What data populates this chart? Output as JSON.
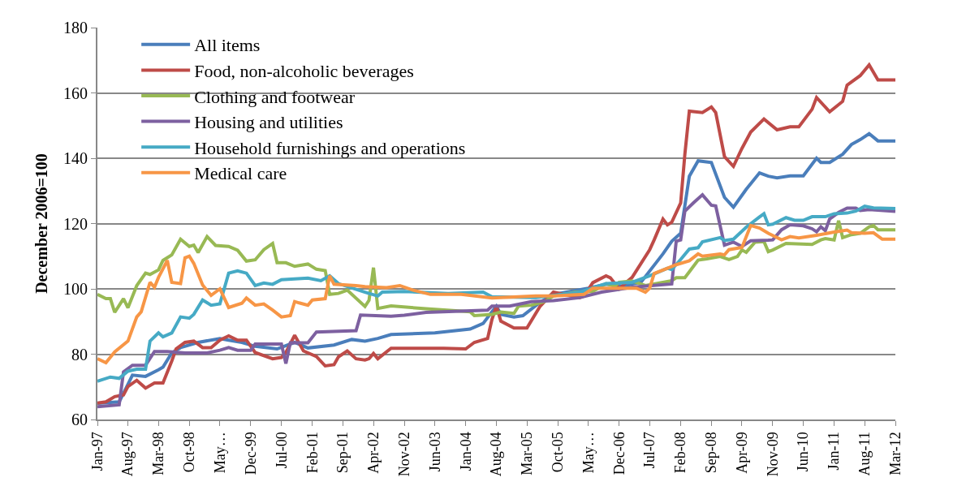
{
  "chart_data": {
    "type": "line",
    "ylabel": "December 2006=100",
    "ylim": [
      60,
      180
    ],
    "yticks": [
      60,
      80,
      100,
      120,
      140,
      160,
      180
    ],
    "xlim": [
      "1997-01",
      "2012-03"
    ],
    "xticks": [
      {
        "value": "1997-01",
        "label": "Jan-97"
      },
      {
        "value": "1997-08",
        "label": "Aug-97"
      },
      {
        "value": "1998-03",
        "label": "Mar-98"
      },
      {
        "value": "1998-10",
        "label": "Oct-98"
      },
      {
        "value": "1999-05",
        "label": "May…"
      },
      {
        "value": "1999-12",
        "label": "Dec-99"
      },
      {
        "value": "2000-07",
        "label": "Jul-00"
      },
      {
        "value": "2001-02",
        "label": "Feb-01"
      },
      {
        "value": "2001-09",
        "label": "Sep-01"
      },
      {
        "value": "2002-04",
        "label": "Apr-02"
      },
      {
        "value": "2002-11",
        "label": "Nov-02"
      },
      {
        "value": "2003-06",
        "label": "Jun-03"
      },
      {
        "value": "2004-01",
        "label": "Jan-04"
      },
      {
        "value": "2004-08",
        "label": "Aug-04"
      },
      {
        "value": "2005-03",
        "label": "Mar-05"
      },
      {
        "value": "2005-10",
        "label": "Oct-05"
      },
      {
        "value": "2006-05",
        "label": "May…"
      },
      {
        "value": "2006-12",
        "label": "Dec-06"
      },
      {
        "value": "2007-07",
        "label": "Jul-07"
      },
      {
        "value": "2008-02",
        "label": "Feb-08"
      },
      {
        "value": "2008-09",
        "label": "Sep-08"
      },
      {
        "value": "2009-04",
        "label": "Apr-09"
      },
      {
        "value": "2009-11",
        "label": "Nov-09"
      },
      {
        "value": "2010-06",
        "label": "Jun-10"
      },
      {
        "value": "2011-01",
        "label": "Jan-11"
      },
      {
        "value": "2011-08",
        "label": "Aug-11"
      },
      {
        "value": "2012-03",
        "label": "Mar-12"
      }
    ],
    "grid": "y",
    "legend": "top left",
    "marker": "none",
    "line_style": "solid",
    "series": [
      {
        "name": "All items",
        "color": "#4a7ebb",
        "x": [
          "1997-01",
          "1997-06",
          "1997-08",
          "1997-09",
          "1997-12",
          "1998-03",
          "1998-04",
          "1998-06",
          "1998-08",
          "1998-12",
          "1999-05",
          "1999-07",
          "1999-10",
          "2000-01",
          "2000-06",
          "2000-10",
          "2001-01",
          "2001-07",
          "2001-11",
          "2002-02",
          "2002-05",
          "2002-08",
          "2003-06",
          "2004-02",
          "2004-05",
          "2004-07",
          "2004-08",
          "2004-09",
          "2004-12",
          "2005-02",
          "2005-06",
          "2005-09",
          "2006-05",
          "2006-09",
          "2007-01",
          "2007-03",
          "2007-05",
          "2007-10",
          "2007-12",
          "2008-02",
          "2008-04",
          "2008-06",
          "2008-09",
          "2008-12",
          "2009-02",
          "2009-05",
          "2009-08",
          "2009-10",
          "2009-12",
          "2010-03",
          "2010-06",
          "2010-09",
          "2010-10",
          "2010-12",
          "2011-03",
          "2011-05",
          "2011-07",
          "2011-09",
          "2011-11",
          "2012-03"
        ],
        "values": [
          65,
          65.4,
          70.8,
          73.6,
          73.2,
          75.2,
          76,
          80.4,
          82,
          83.6,
          84.8,
          84.3,
          83.6,
          82.4,
          81.6,
          83.6,
          81.9,
          82.8,
          84.5,
          84,
          84.8,
          86,
          86.5,
          87.7,
          89.4,
          93,
          94.7,
          92.2,
          91.4,
          91.8,
          95.9,
          98.3,
          100.2,
          101.4,
          100.8,
          101.5,
          102,
          110.7,
          114.6,
          117,
          134.5,
          139.2,
          138.7,
          128,
          125,
          130.5,
          135.5,
          134.5,
          134,
          134.6,
          134.6,
          140,
          138.7,
          138.7,
          141.2,
          144.2,
          145.7,
          147.5,
          145.3,
          145.3
        ]
      },
      {
        "name": "Food, non-alcoholic beverages",
        "color": "#be4b48",
        "x": [
          "1997-01",
          "1997-03",
          "1997-05",
          "1997-07",
          "1997-08",
          "1997-10",
          "1997-12",
          "1998-02",
          "1998-04",
          "1998-06",
          "1998-07",
          "1998-09",
          "1998-11",
          "1999-01",
          "1999-03",
          "1999-05",
          "1999-07",
          "1999-09",
          "1999-11",
          "2000-01",
          "2000-05",
          "2000-07",
          "2000-08",
          "2000-10",
          "2000-12",
          "2001-03",
          "2001-05",
          "2001-07",
          "2001-08",
          "2001-10",
          "2001-12",
          "2002-02",
          "2002-03",
          "2002-04",
          "2002-05",
          "2002-08",
          "2003-08",
          "2004-01",
          "2004-03",
          "2004-06",
          "2004-07",
          "2004-08",
          "2004-09",
          "2004-12",
          "2005-03",
          "2005-06",
          "2005-09",
          "2006-03",
          "2006-04",
          "2006-06",
          "2006-09",
          "2006-10",
          "2006-12",
          "2007-02",
          "2007-03",
          "2007-07",
          "2007-08",
          "2007-10",
          "2007-11",
          "2007-12",
          "2008-02",
          "2008-03",
          "2008-04",
          "2008-07",
          "2008-09",
          "2008-10",
          "2008-12",
          "2009-02",
          "2009-04",
          "2009-06",
          "2009-09",
          "2009-12",
          "2010-03",
          "2010-05",
          "2010-08",
          "2010-09",
          "2010-12",
          "2011-03",
          "2011-04",
          "2011-07",
          "2011-09",
          "2011-11",
          "2012-03"
        ],
        "values": [
          65,
          65.4,
          67,
          67.5,
          70.1,
          72,
          69.6,
          71.2,
          71.2,
          77.9,
          81.6,
          83.6,
          84,
          82,
          82,
          84.3,
          85.6,
          84.3,
          84.3,
          80.5,
          78.6,
          79,
          80.5,
          85.8,
          81,
          79.3,
          76.4,
          76.8,
          79.2,
          81,
          78.6,
          78.2,
          78.6,
          80.2,
          78.6,
          81.8,
          81.8,
          81.6,
          83.6,
          84.8,
          90.6,
          94.7,
          90.1,
          88,
          88,
          94.7,
          99,
          97.3,
          97.8,
          101.9,
          104,
          103.4,
          100,
          102.5,
          103.5,
          112,
          115,
          121.4,
          119.6,
          120.4,
          126.3,
          141.2,
          154.4,
          154,
          155.7,
          154,
          140.5,
          137.5,
          143,
          148,
          152,
          148.7,
          149.6,
          149.6,
          155,
          158.6,
          154.2,
          157.4,
          162.4,
          165.3,
          168.6,
          164,
          164
        ]
      },
      {
        "name": "Clothing and footwear",
        "color": "#98b954",
        "x": [
          "1997-01",
          "1997-03",
          "1997-04",
          "1997-05",
          "1997-07",
          "1997-08",
          "1997-10",
          "1997-12",
          "1998-01",
          "1998-03",
          "1998-04",
          "1998-06",
          "1998-08",
          "1998-10",
          "1998-11",
          "1998-12",
          "1999-02",
          "1999-04",
          "1999-07",
          "1999-09",
          "1999-11",
          "2000-01",
          "2000-03",
          "2000-05",
          "2000-06",
          "2000-08",
          "2000-10",
          "2001-01",
          "2001-03",
          "2001-05",
          "2001-06",
          "2001-08",
          "2001-10",
          "2002-02",
          "2002-03",
          "2002-04",
          "2002-05",
          "2002-08",
          "2003-04",
          "2004-02",
          "2004-03",
          "2004-07",
          "2004-09",
          "2004-12",
          "2005-01",
          "2005-04",
          "2005-07",
          "2005-09",
          "2006-02",
          "2006-06",
          "2006-09",
          "2006-11",
          "2006-12",
          "2007-03",
          "2007-06",
          "2007-12",
          "2008-01",
          "2008-03",
          "2008-04",
          "2008-06",
          "2008-08",
          "2008-11",
          "2009-01",
          "2009-03",
          "2009-04",
          "2009-05",
          "2009-07",
          "2009-09",
          "2009-10",
          "2009-11",
          "2010-02",
          "2010-08",
          "2010-10",
          "2010-11",
          "2011-01",
          "2011-02",
          "2011-03",
          "2011-05",
          "2011-07",
          "2011-09",
          "2011-10",
          "2011-11",
          "2012-03"
        ],
        "values": [
          98.3,
          97,
          97,
          92.8,
          97,
          94.2,
          101,
          104.8,
          104.4,
          105.8,
          108.7,
          110.4,
          115.2,
          113,
          113.4,
          111.1,
          116,
          113.3,
          113,
          111.8,
          108.5,
          108.9,
          112,
          113.9,
          108,
          108,
          106.9,
          107.6,
          106,
          105.6,
          98.3,
          98.6,
          99.6,
          94.6,
          96.5,
          106.5,
          94,
          94.8,
          93.9,
          93,
          91.8,
          92.2,
          92.9,
          92.5,
          94.7,
          95,
          96.1,
          97.8,
          99,
          99.2,
          101.6,
          100.8,
          102,
          102.4,
          101,
          102.5,
          103.4,
          103.4,
          105.2,
          108.8,
          109.2,
          109.9,
          109,
          109.9,
          111.9,
          111.2,
          114.3,
          114.5,
          111.4,
          111.9,
          113.9,
          113.6,
          115,
          115.4,
          115,
          120.9,
          115.7,
          116.6,
          117,
          119,
          119.4,
          118.1,
          118.1
        ]
      },
      {
        "name": "Housing and utilities",
        "color": "#7d60a0",
        "x": [
          "1997-01",
          "1997-06",
          "1997-07",
          "1997-09",
          "1997-12",
          "1998-02",
          "1998-05",
          "1998-09",
          "1999-02",
          "1999-05",
          "1999-07",
          "1999-09",
          "1999-12",
          "2000-01",
          "2000-07",
          "2000-08",
          "2000-09",
          "2001-01",
          "2001-03",
          "2001-12",
          "2002-01",
          "2002-08",
          "2002-11",
          "2003-04",
          "2004-06",
          "2004-07",
          "2004-11",
          "2005-04",
          "2005-09",
          "2006-03",
          "2006-08",
          "2007-03",
          "2007-12",
          "2008-01",
          "2008-02",
          "2008-03",
          "2008-05",
          "2008-07",
          "2008-09",
          "2008-10",
          "2008-12",
          "2009-02",
          "2009-04",
          "2009-06",
          "2009-10",
          "2009-11",
          "2010-01",
          "2010-03",
          "2010-06",
          "2010-08",
          "2010-09",
          "2010-10",
          "2010-11",
          "2010-12",
          "2011-02",
          "2011-04",
          "2011-06",
          "2011-07",
          "2011-09",
          "2012-03"
        ],
        "values": [
          63.9,
          64.5,
          74.6,
          76.6,
          76.6,
          80.8,
          80.8,
          80.4,
          80.4,
          81.2,
          82,
          81.2,
          81.2,
          83.1,
          83.1,
          77.1,
          83.5,
          83.5,
          86.8,
          87.2,
          92,
          91.6,
          91.9,
          92.8,
          93.5,
          94.7,
          94.7,
          96.1,
          96.4,
          97.3,
          99,
          100.5,
          101.5,
          114.6,
          115,
          123.8,
          126.4,
          128.8,
          125.6,
          125.4,
          113.4,
          114.3,
          113,
          114.7,
          114.9,
          115,
          118.1,
          119.6,
          119.3,
          118.4,
          117.5,
          119,
          117.8,
          121.4,
          123.4,
          124.7,
          124.7,
          124,
          124.3,
          123.7
        ]
      },
      {
        "name": "Household furnishings and operations",
        "color": "#46aac5",
        "x": [
          "1997-01",
          "1997-04",
          "1997-06",
          "1997-08",
          "1997-10",
          "1997-12",
          "1998-01",
          "1998-03",
          "1998-04",
          "1998-06",
          "1998-08",
          "1998-10",
          "1998-11",
          "1999-01",
          "1999-03",
          "1999-05",
          "1999-07",
          "1999-09",
          "1999-11",
          "2000-01",
          "2000-03",
          "2000-05",
          "2000-07",
          "2001-01",
          "2001-04",
          "2001-06",
          "2001-08",
          "2002-02",
          "2002-05",
          "2002-06",
          "2002-11",
          "2003-09",
          "2004-05",
          "2004-07",
          "2005-05",
          "2006-03",
          "2006-09",
          "2007-03",
          "2007-07",
          "2007-11",
          "2007-12",
          "2008-02",
          "2008-04",
          "2008-06",
          "2008-07",
          "2008-11",
          "2008-12",
          "2009-02",
          "2009-05",
          "2009-08",
          "2009-09",
          "2009-10",
          "2009-11",
          "2010-02",
          "2010-04",
          "2010-06",
          "2010-08",
          "2010-11",
          "2011-01",
          "2011-04",
          "2011-06",
          "2011-08",
          "2011-10",
          "2012-03"
        ],
        "values": [
          71.7,
          73,
          72.6,
          74.8,
          75.4,
          75.4,
          84,
          86.5,
          85.3,
          86.5,
          91.4,
          91,
          92.2,
          96.6,
          95,
          95.4,
          104.8,
          105.5,
          104.8,
          101,
          101.8,
          101.4,
          102.8,
          103.3,
          102.5,
          104,
          101.6,
          99,
          97.8,
          99,
          99.2,
          98.6,
          99,
          97.6,
          97.3,
          99,
          101.6,
          102,
          104,
          106.3,
          105.9,
          109,
          112.2,
          112.6,
          114.4,
          115.7,
          114.8,
          115.2,
          118.9,
          122,
          123,
          119.6,
          119.8,
          121.8,
          121,
          121,
          122.1,
          122.1,
          123,
          123.2,
          123.8,
          125.3,
          124.8,
          124.6
        ]
      },
      {
        "name": "Medical care",
        "color": "#f79646",
        "x": [
          "1997-01",
          "1997-03",
          "1997-05",
          "1997-08",
          "1997-10",
          "1997-11",
          "1998-01",
          "1998-02",
          "1998-03",
          "1998-05",
          "1998-06",
          "1998-08",
          "1998-09",
          "1998-10",
          "1998-11",
          "1999-01",
          "1999-03",
          "1999-05",
          "1999-07",
          "1999-10",
          "1999-11",
          "2000-01",
          "2000-03",
          "2000-05",
          "2000-07",
          "2000-09",
          "2000-10",
          "2000-11",
          "2001-01",
          "2001-02",
          "2001-05",
          "2001-06",
          "2001-07",
          "2001-12",
          "2002-02",
          "2002-07",
          "2002-10",
          "2003-01",
          "2003-05",
          "2003-12",
          "2004-07",
          "2005-05",
          "2005-09",
          "2006-04",
          "2006-06",
          "2007-04",
          "2007-06",
          "2007-07",
          "2007-08",
          "2007-11",
          "2008-01",
          "2008-04",
          "2008-06",
          "2008-07",
          "2008-11",
          "2008-12",
          "2009-01",
          "2009-04",
          "2009-06",
          "2009-08",
          "2009-10",
          "2010-01",
          "2010-03",
          "2010-05",
          "2010-09",
          "2011-01",
          "2011-04",
          "2011-05",
          "2011-08",
          "2011-10",
          "2011-12",
          "2012-03"
        ],
        "values": [
          78.6,
          77.4,
          80.7,
          84,
          91.4,
          93,
          102,
          100.5,
          103.5,
          108.7,
          102,
          101.6,
          109.5,
          110,
          107.8,
          101.2,
          98,
          100,
          94.3,
          95.6,
          97.2,
          95,
          95.4,
          93.5,
          91.4,
          91.8,
          96.1,
          95.7,
          95,
          96.6,
          97,
          104,
          101.4,
          101,
          100.7,
          100.4,
          101,
          99.6,
          98.3,
          98.3,
          97.2,
          97.8,
          97.8,
          98.3,
          100.2,
          100.2,
          99,
          100.2,
          104.7,
          106.3,
          107.4,
          108.6,
          110.7,
          110,
          110.7,
          110.4,
          112,
          112.7,
          119.4,
          118.6,
          117,
          115,
          116,
          115.6,
          116.4,
          117.4,
          118,
          117.2,
          117,
          117.2,
          115.2,
          115.2
        ]
      }
    ]
  }
}
